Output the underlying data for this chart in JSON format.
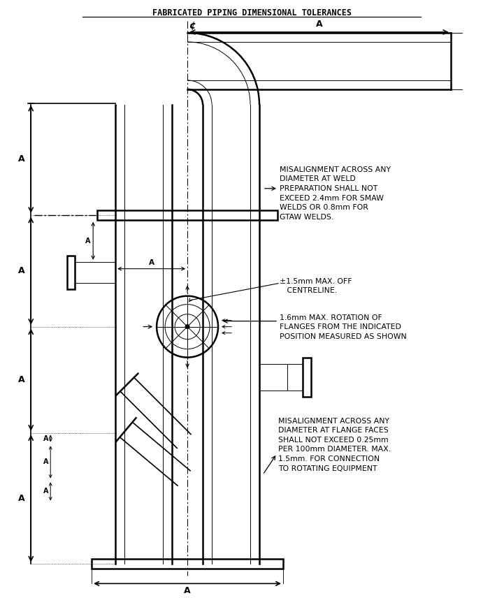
{
  "title": "FABRICATED PIPING DIMENSIONAL TOLERANCES",
  "bg_color": "#ffffff",
  "lc": "#000000",
  "annotation_weld": "MISALIGNMENT ACROSS ANY\nDIAMETER AT WELD\nPREPARATION SHALL NOT\nEXCEED 2.4mm FOR SMAW\nWELDS OR 0.8mm FOR\nGTAW WELDS.",
  "annotation_cl": "±1.5mm MAX. OFF\n   CENTRELINE.",
  "annotation_rot": "1.6mm MAX. ROTATION OF\nFLANGES FROM THE INDICATED\nPOSITION MEASURED AS SHOWN",
  "annotation_flange": "MISALIGNMENT ACROSS ANY\nDIAMETER AT FLANGE FACES\nSHALL NOT EXCEED 0.25mm\nPER 100mm DIAMETER. MAX.\n1.5mm. FOR CONNECTION\nTO ROTATING EQUIPMENT",
  "label_A": "A",
  "label_CL": "¢",
  "figsize": [
    7.21,
    8.56
  ],
  "dpi": 100
}
